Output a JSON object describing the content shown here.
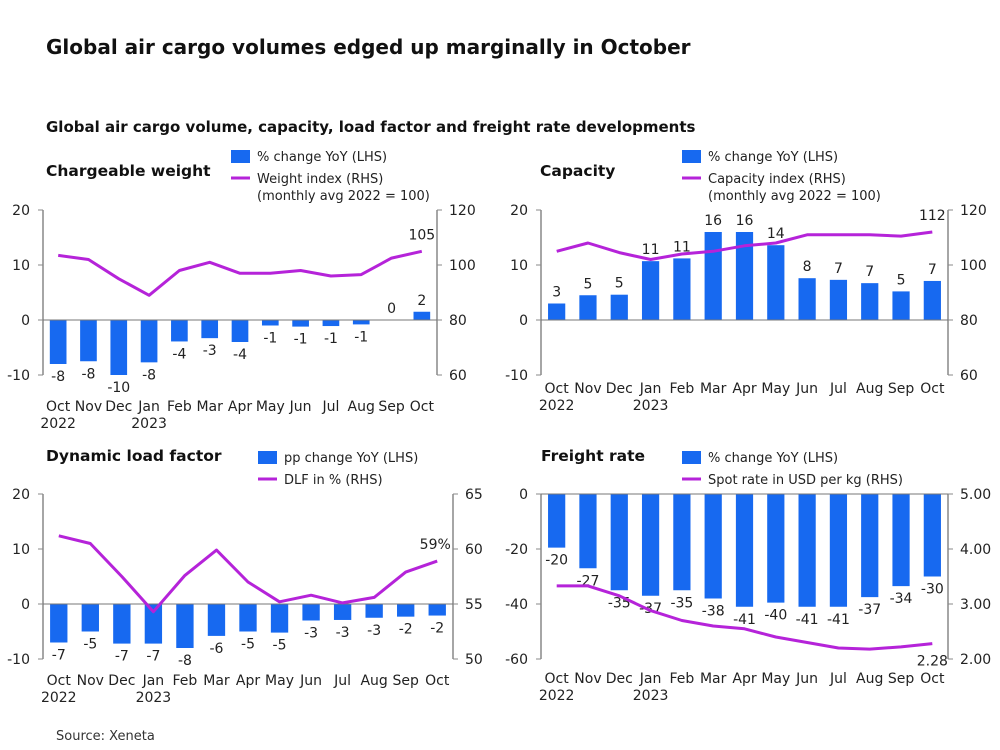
{
  "title": "Global air cargo volumes edged up marginally in October",
  "subtitle": "Global air cargo volume, capacity, load factor and freight rate developments",
  "source": "Source: Xeneta",
  "colors": {
    "bar": "#1769f0",
    "line": "#b523d9",
    "axis": "#888888"
  },
  "chart_data": [
    {
      "type": "bar+line",
      "title": "Chargeable weight",
      "legend": {
        "bar": "% change YoY (LHS)",
        "line": [
          "Weight index (RHS)",
          "(monthly avg 2022 = 100)"
        ]
      },
      "categories": [
        "Oct",
        "Nov",
        "Dec",
        "Jan",
        "Feb",
        "Mar",
        "Apr",
        "May",
        "Jun",
        "Jul",
        "Aug",
        "Sep",
        "Oct"
      ],
      "years": {
        "0": "2022",
        "3": "2023"
      },
      "left_axis": {
        "range": [
          -10,
          20
        ],
        "ticks": [
          "-10",
          "0",
          "10",
          "20"
        ]
      },
      "right_axis": {
        "range": [
          60,
          120
        ],
        "ticks": [
          "60",
          "80",
          "100",
          "120"
        ]
      },
      "bar_values": [
        -8,
        -7.5,
        -10,
        -7.7,
        -3.9,
        -3.3,
        -4,
        -1,
        -1.2,
        -1.1,
        -0.8,
        0,
        1.5
      ],
      "bar_labels": [
        "-8",
        "-8",
        "-10",
        "-8",
        "-4",
        "-3",
        "-4",
        "-1",
        "-1",
        "-1",
        "-1",
        "0",
        "2"
      ],
      "line_values": [
        103.5,
        102,
        95,
        89,
        98,
        101,
        97,
        97,
        98,
        96,
        96.5,
        102.5,
        105
      ],
      "line_end_label": "105"
    },
    {
      "type": "bar+line",
      "title": "Capacity",
      "legend": {
        "bar": "% change YoY (LHS)",
        "line": [
          "Capacity index (RHS)",
          "(monthly avg 2022 = 100)"
        ]
      },
      "categories": [
        "Oct",
        "Nov",
        "Dec",
        "Jan",
        "Feb",
        "Mar",
        "Apr",
        "May",
        "Jun",
        "Jul",
        "Aug",
        "Sep",
        "Oct"
      ],
      "years": {
        "0": "2022",
        "3": "2023"
      },
      "left_axis": {
        "range": [
          -10,
          20
        ],
        "ticks": [
          "-10",
          "0",
          "10",
          "20"
        ]
      },
      "right_axis": {
        "range": [
          60,
          120
        ],
        "ticks": [
          "60",
          "80",
          "100",
          "120"
        ]
      },
      "bar_values": [
        3,
        4.5,
        4.6,
        10.7,
        11.2,
        16,
        16,
        13.6,
        7.6,
        7.3,
        6.7,
        5.2,
        7.1
      ],
      "bar_labels": [
        "3",
        "5",
        "5",
        "11",
        "11",
        "16",
        "16",
        "14",
        "8",
        "7",
        "7",
        "5",
        "7"
      ],
      "line_values": [
        105,
        108,
        104.5,
        102,
        104,
        105,
        107,
        108,
        111,
        111,
        111,
        110.5,
        112
      ],
      "line_end_label": "112"
    },
    {
      "type": "bar+line",
      "title": "Dynamic load factor",
      "legend": {
        "bar": "pp change YoY (LHS)",
        "line": [
          "DLF in % (RHS)"
        ]
      },
      "categories": [
        "Oct",
        "Nov",
        "Dec",
        "Jan",
        "Feb",
        "Mar",
        "Apr",
        "May",
        "Jun",
        "Jul",
        "Aug",
        "Sep",
        "Oct"
      ],
      "years": {
        "0": "2022",
        "3": "2023"
      },
      "left_axis": {
        "range": [
          -10,
          20
        ],
        "ticks": [
          "-10",
          "0",
          "10",
          "20"
        ]
      },
      "right_axis": {
        "range": [
          50,
          65
        ],
        "ticks": [
          "50",
          "55",
          "60",
          "65"
        ]
      },
      "bar_values": [
        -7,
        -5,
        -7.2,
        -7.2,
        -8,
        -5.8,
        -5,
        -5.2,
        -3,
        -2.9,
        -2.5,
        -2.3,
        -2.1
      ],
      "bar_labels": [
        "-7",
        "-5",
        "-7",
        "-7",
        "-8",
        "-6",
        "-5",
        "-5",
        "-3",
        "-3",
        "-3",
        "-2",
        "-2"
      ],
      "line_values": [
        61.2,
        60.5,
        57.5,
        54.3,
        57.6,
        59.9,
        57,
        55.2,
        55.8,
        55.1,
        55.6,
        57.9,
        58.9
      ],
      "line_end_label": "59%"
    },
    {
      "type": "bar+line",
      "title": "Freight rate",
      "legend": {
        "bar": "% change YoY (LHS)",
        "line": [
          "Spot rate in USD per kg (RHS)"
        ]
      },
      "categories": [
        "Oct",
        "Nov",
        "Dec",
        "Jan",
        "Feb",
        "Mar",
        "Apr",
        "May",
        "Jun",
        "Jul",
        "Aug",
        "Sep",
        "Oct"
      ],
      "years": {
        "0": "2022",
        "3": "2023"
      },
      "left_axis": {
        "range": [
          -60,
          0
        ],
        "ticks": [
          "-60",
          "-40",
          "-20",
          "0"
        ]
      },
      "right_axis": {
        "range": [
          2,
          5
        ],
        "ticks": [
          "2.00",
          "3.00",
          "4.00",
          "5.00"
        ]
      },
      "bar_values": [
        -19.5,
        -27,
        -35,
        -37,
        -35,
        -38,
        -41,
        -39.5,
        -41,
        -41,
        -37.5,
        -33.5,
        -30
      ],
      "bar_labels": [
        "-20",
        "-27",
        "-35",
        "-37",
        "-35",
        "-38",
        "-41",
        "-40",
        "-41",
        "-41",
        "-37",
        "-34",
        "-30"
      ],
      "line_values": [
        3.33,
        3.33,
        3.15,
        2.88,
        2.7,
        2.6,
        2.55,
        2.4,
        2.3,
        2.2,
        2.18,
        2.22,
        2.28
      ],
      "line_end_label": "2.28"
    }
  ]
}
